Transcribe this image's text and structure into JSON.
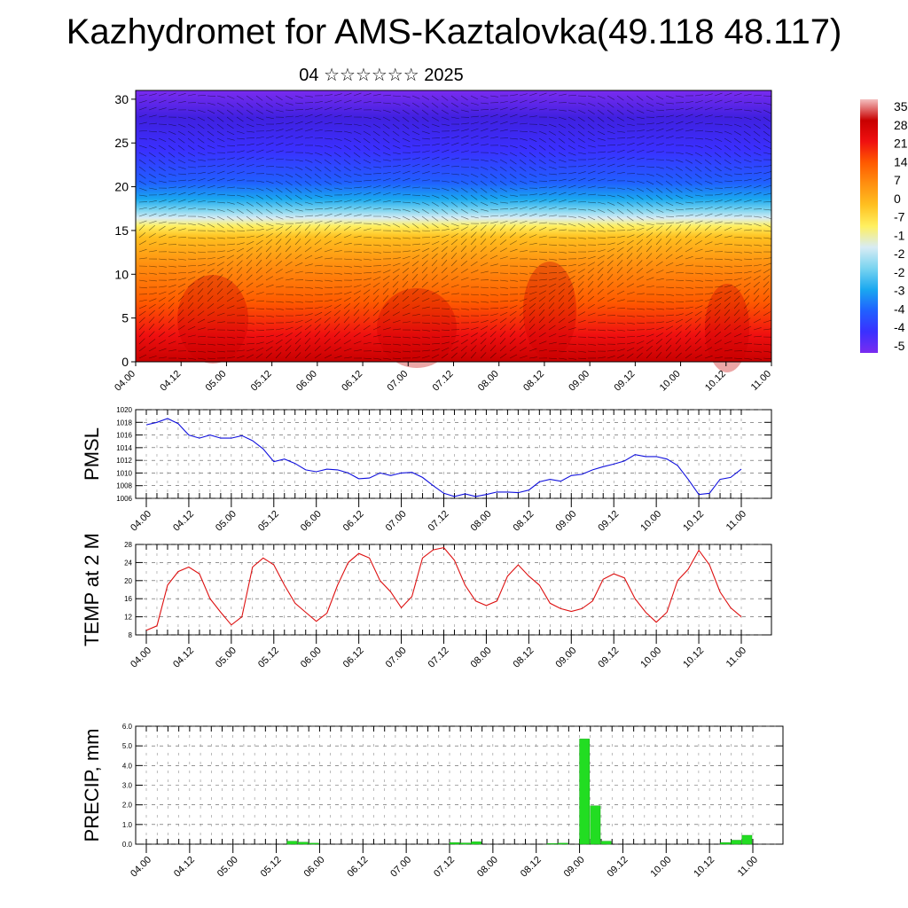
{
  "title": "Kazhydromet for AMS-Kaztalovka(49.118 48.117)",
  "subtitle": "04 ☆☆☆☆☆☆ 2025",
  "colors": {
    "pmsl_line": "#1010dd",
    "temp_line": "#dd1010",
    "precip_bar": "#22dd22",
    "precip_bar_edge": "#11aa11",
    "colorbar": [
      "#7a2cf0",
      "#3a30ff",
      "#2060ff",
      "#1aa8f0",
      "#7ad4f0",
      "#d8ecf4",
      "#fff060",
      "#ffc020",
      "#ff9010",
      "#ff5a00",
      "#f01010",
      "#c80000",
      "#f4c0c0"
    ]
  },
  "chart_data": [
    {
      "type": "heatmap",
      "title": "",
      "ylabel": "",
      "ylim": [
        0,
        31
      ],
      "y_ticks": [
        "0",
        "5",
        "10",
        "15",
        "20",
        "25",
        "30"
      ],
      "x_tick_labels": [
        "04.00",
        "04.12",
        "05.00",
        "05.12",
        "06.00",
        "06.12",
        "07.00",
        "07.12",
        "08.00",
        "08.12",
        "09.00",
        "09.12",
        "10.00",
        "10.12",
        "11.00"
      ],
      "colorbar_labels": [
        "35",
        "28",
        "21",
        "14",
        "7",
        "0",
        "-7",
        "-1",
        "-2",
        "-2",
        "-3",
        "-4",
        "-4",
        "-5"
      ],
      "overlay": "wind barbs"
    },
    {
      "type": "line",
      "ylabel": "PMSL",
      "ylim": [
        1006,
        1020
      ],
      "y_ticks": [
        "1006",
        "1008",
        "1010",
        "1012",
        "1014",
        "1016",
        "1018",
        "1020"
      ],
      "grid": true,
      "x_tick_labels": [
        "04.00",
        "04.12",
        "05.00",
        "05.12",
        "06.00",
        "06.12",
        "07.00",
        "07.12",
        "08.00",
        "08.12",
        "09.00",
        "09.12",
        "10.00",
        "10.12",
        "11.00"
      ],
      "series": [
        {
          "values": [
            1017.6,
            1018.0,
            1018.6,
            1017.8,
            1016.0,
            1015.5,
            1016.0,
            1015.5,
            1015.5,
            1015.9,
            1015.1,
            1013.8,
            1011.8,
            1012.2,
            1011.5,
            1010.5,
            1010.2,
            1010.6,
            1010.5,
            1010.0,
            1009.1,
            1009.2,
            1010.0,
            1009.6,
            1010.0,
            1010.1,
            1009.3,
            1008.0,
            1006.8,
            1006.3,
            1006.7,
            1006.3,
            1006.6,
            1007.0,
            1007.0,
            1006.9,
            1007.3,
            1008.6,
            1009.0,
            1008.7,
            1009.6,
            1009.8,
            1010.5,
            1011.0,
            1011.4,
            1011.9,
            1012.9,
            1012.6,
            1012.6,
            1012.2,
            1011.2,
            1009.0,
            1006.6,
            1006.8,
            1009.0,
            1009.3,
            1010.6
          ]
        }
      ]
    },
    {
      "type": "line",
      "ylabel": "TEMP at 2 M",
      "ylim": [
        8,
        28
      ],
      "y_ticks": [
        "8",
        "12",
        "16",
        "20",
        "24",
        "28"
      ],
      "grid": true,
      "x_tick_labels": [
        "04.00",
        "04.12",
        "05.00",
        "05.12",
        "06.00",
        "06.12",
        "07.00",
        "07.12",
        "08.00",
        "08.12",
        "09.00",
        "09.12",
        "10.00",
        "10.12",
        "11.00"
      ],
      "series": [
        {
          "values": [
            9,
            10,
            19,
            22,
            23,
            21.5,
            16,
            13,
            10.2,
            12,
            23,
            25,
            23.5,
            19,
            15,
            13,
            11,
            12.8,
            19,
            24,
            26,
            25,
            20,
            17.5,
            14,
            16.5,
            25,
            26.8,
            27.3,
            24.5,
            19,
            15.5,
            14.5,
            15.5,
            21,
            23.5,
            21,
            19,
            15,
            13.8,
            13.2,
            13.8,
            15.5,
            20.3,
            21.5,
            20.6,
            16,
            13,
            10.8,
            13,
            20,
            22.5,
            26.7,
            23.5,
            17.5,
            14,
            12
          ]
        }
      ]
    },
    {
      "type": "bar",
      "ylabel": "PRECIP, mm",
      "ylim": [
        0,
        6
      ],
      "y_ticks": [
        "0.0",
        "1.0",
        "2.0",
        "3.0",
        "4.0",
        "5.0",
        "6.0"
      ],
      "grid": true,
      "x_tick_labels": [
        "04.00",
        "04.12",
        "05.00",
        "05.12",
        "06.00",
        "06.12",
        "07.00",
        "07.12",
        "08.00",
        "08.12",
        "09.00",
        "09.12",
        "10.00",
        "10.12",
        "11.00"
      ],
      "values": [
        0,
        0,
        0,
        0,
        0,
        0,
        0,
        0,
        0,
        0,
        0,
        0,
        0,
        0.15,
        0.1,
        0.05,
        0,
        0,
        0,
        0,
        0,
        0,
        0,
        0,
        0,
        0,
        0,
        0,
        0.08,
        0.06,
        0.12,
        0,
        0,
        0,
        0,
        0,
        0,
        0.03,
        0.05,
        0,
        5.35,
        1.95,
        0.15,
        0,
        0,
        0,
        0,
        0,
        0,
        0,
        0,
        0,
        0,
        0.08,
        0.2,
        0.45,
        0
      ]
    }
  ]
}
